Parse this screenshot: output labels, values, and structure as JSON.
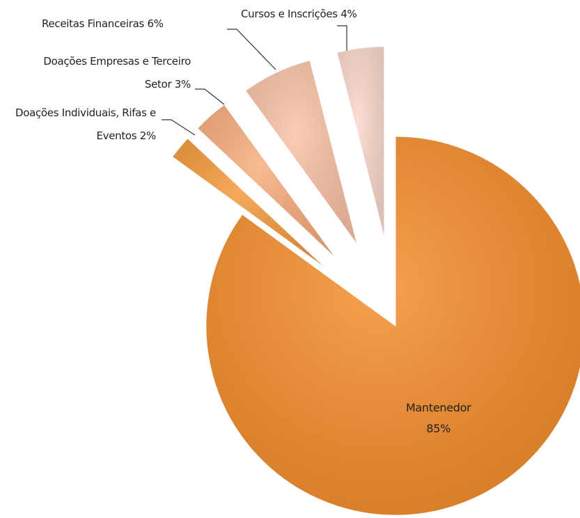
{
  "chart_data": {
    "type": "pie",
    "categories": [
      "Mantenedor",
      "Doações Individuais, Rifas e Eventos",
      "Doações Empresas e Terceiro Setor",
      "Receitas Financeiras",
      "Cursos e Inscrições"
    ],
    "values": [
      85,
      2,
      3,
      6,
      4
    ],
    "value_labels": [
      "85%",
      "2%",
      "3%",
      "6%",
      "4%"
    ],
    "colors": [
      "#f58d2a",
      "#f59a3a",
      "#f8ad7c",
      "#f9c2a4",
      "#fbd8cb"
    ]
  }
}
